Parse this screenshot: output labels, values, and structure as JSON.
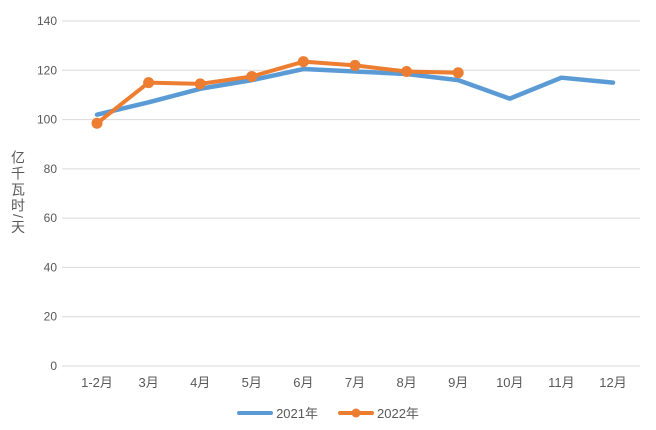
{
  "chart_data": {
    "type": "line",
    "title": "",
    "xlabel": "",
    "ylabel": "亿千瓦时/天",
    "ylim": [
      0,
      140
    ],
    "y_ticks": [
      0,
      20,
      40,
      60,
      80,
      100,
      120,
      140
    ],
    "grid": true,
    "legend_position": "bottom",
    "categories": [
      "1-2月",
      "3月",
      "4月",
      "5月",
      "6月",
      "7月",
      "8月",
      "9月",
      "10月",
      "11月",
      "12月"
    ],
    "series": [
      {
        "name": "2021年",
        "color": "#5B9BD5",
        "marker": "none",
        "values": [
          102,
          107,
          112.5,
          116,
          120.5,
          119.5,
          118.5,
          116,
          108.5,
          117,
          115
        ]
      },
      {
        "name": "2022年",
        "color": "#ED7D31",
        "marker": "circle",
        "values": [
          98.5,
          115,
          114.5,
          117.5,
          123.5,
          122,
          119.5,
          119
        ]
      }
    ]
  },
  "colors": {
    "grid": "#D9D9D9",
    "axis_text": "#595959",
    "background": "#FFFFFF",
    "series_2021": "#5B9BD5",
    "series_2022": "#ED7D31"
  }
}
